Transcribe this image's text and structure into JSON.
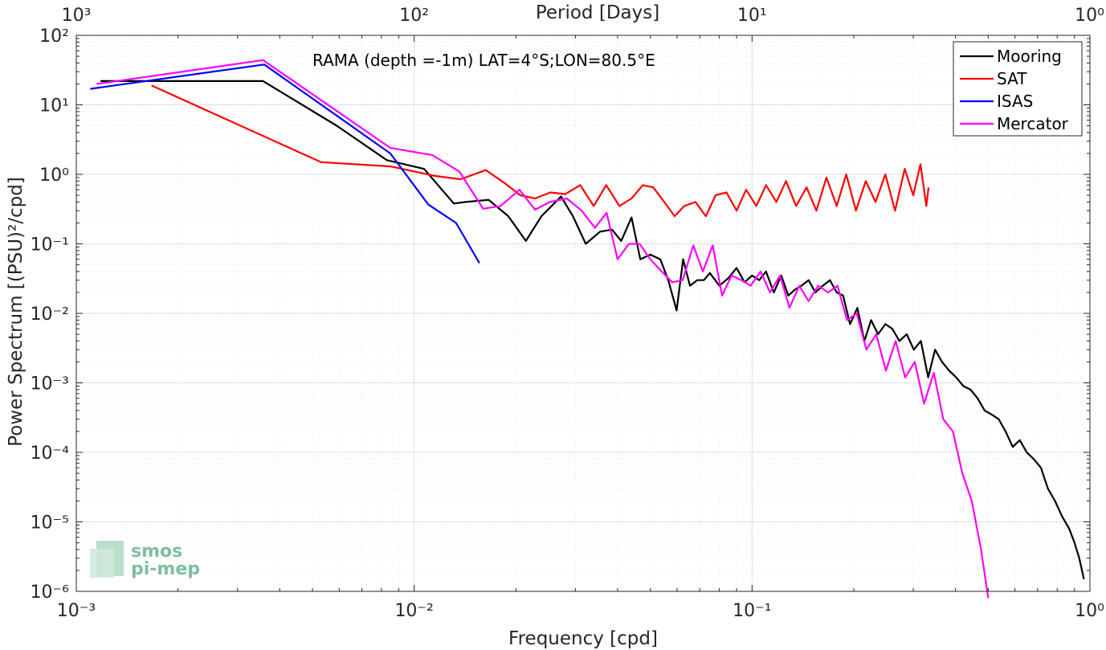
{
  "chart_data": {
    "type": "line",
    "title": "RAMA (depth =-1m) LAT=4°S;LON=80.5°E",
    "xlabel": "Frequency [cpd]",
    "ylabel": "Power Spectrum [(PSU)²/cpd]",
    "top_xlabel": "Period [Days]",
    "xscale": "log",
    "yscale": "log",
    "xlim": [
      0.001,
      1
    ],
    "ylim": [
      1e-06,
      100
    ],
    "grid": true,
    "legend_position": "top-right",
    "x_tick_labels": [
      "10⁻³",
      "10⁻²",
      "10⁻¹",
      "10⁰"
    ],
    "top_tick_labels": [
      "10³",
      "10²",
      "10¹",
      "10⁰"
    ],
    "y_tick_labels": [
      "10⁻⁶",
      "10⁻⁵",
      "10⁻⁴",
      "10⁻³",
      "10⁻²",
      "10⁻¹",
      "10⁰",
      "10¹",
      "10²"
    ],
    "logo": {
      "line1": "smos",
      "line2": "pi-mep"
    },
    "series": [
      {
        "name": "Mooring",
        "color": "#000000",
        "x": [
          0.00118,
          0.00357,
          0.0059,
          0.0083,
          0.0107,
          0.0131,
          0.0142,
          0.0166,
          0.019,
          0.0214,
          0.0238,
          0.0272,
          0.0295,
          0.0322,
          0.0355,
          0.0385,
          0.041,
          0.044,
          0.0467,
          0.05,
          0.0535,
          0.0565,
          0.0598,
          0.0625,
          0.0655,
          0.0688,
          0.072,
          0.075,
          0.08,
          0.085,
          0.09,
          0.095,
          0.1,
          0.105,
          0.11,
          0.116,
          0.122,
          0.128,
          0.134,
          0.14,
          0.147,
          0.154,
          0.162,
          0.17,
          0.178,
          0.186,
          0.195,
          0.205,
          0.215,
          0.225,
          0.236,
          0.248,
          0.26,
          0.273,
          0.287,
          0.301,
          0.316,
          0.332,
          0.348,
          0.365,
          0.383,
          0.402,
          0.422,
          0.443,
          0.465,
          0.488,
          0.512,
          0.537,
          0.563,
          0.591,
          0.62,
          0.65,
          0.682,
          0.716,
          0.751,
          0.788,
          0.827,
          0.868,
          0.9,
          0.93,
          0.96
        ],
        "y": [
          22,
          22,
          5,
          1.6,
          1.2,
          0.38,
          0.4,
          0.43,
          0.25,
          0.11,
          0.25,
          0.48,
          0.25,
          0.1,
          0.15,
          0.16,
          0.11,
          0.24,
          0.06,
          0.07,
          0.06,
          0.03,
          0.011,
          0.06,
          0.025,
          0.03,
          0.03,
          0.038,
          0.025,
          0.032,
          0.045,
          0.028,
          0.035,
          0.03,
          0.04,
          0.02,
          0.035,
          0.018,
          0.022,
          0.025,
          0.03,
          0.02,
          0.025,
          0.03,
          0.02,
          0.018,
          0.007,
          0.012,
          0.004,
          0.008,
          0.005,
          0.007,
          0.006,
          0.004,
          0.005,
          0.003,
          0.004,
          0.0012,
          0.003,
          0.002,
          0.0015,
          0.0012,
          0.0009,
          0.0008,
          0.0006,
          0.0004,
          0.00035,
          0.0003,
          0.0002,
          0.00012,
          0.00015,
          0.0001,
          8e-05,
          6e-05,
          3e-05,
          2e-05,
          1.2e-05,
          8e-06,
          5e-06,
          3e-06,
          1.5e-06
        ]
      },
      {
        "name": "SAT",
        "color": "#ff0000",
        "x": [
          0.00167,
          0.0053,
          0.0085,
          0.0115,
          0.0137,
          0.0163,
          0.0185,
          0.0206,
          0.0228,
          0.0253,
          0.028,
          0.031,
          0.034,
          0.037,
          0.0405,
          0.044,
          0.0475,
          0.051,
          0.055,
          0.059,
          0.063,
          0.068,
          0.073,
          0.078,
          0.084,
          0.09,
          0.096,
          0.103,
          0.11,
          0.118,
          0.126,
          0.135,
          0.145,
          0.155,
          0.166,
          0.178,
          0.19,
          0.203,
          0.217,
          0.232,
          0.248,
          0.265,
          0.283,
          0.3,
          0.315,
          0.328,
          0.333
        ],
        "y": [
          19,
          1.5,
          1.3,
          0.95,
          0.85,
          1.15,
          0.75,
          0.5,
          0.45,
          0.55,
          0.52,
          0.7,
          0.35,
          0.7,
          0.35,
          0.45,
          0.7,
          0.65,
          0.4,
          0.25,
          0.35,
          0.4,
          0.25,
          0.5,
          0.55,
          0.3,
          0.6,
          0.35,
          0.7,
          0.4,
          0.8,
          0.35,
          0.65,
          0.3,
          0.9,
          0.35,
          1.0,
          0.3,
          0.8,
          0.4,
          1.0,
          0.3,
          1.2,
          0.5,
          1.4,
          0.35,
          0.65
        ]
      },
      {
        "name": "ISAS",
        "color": "#0000ff",
        "x": [
          0.0011,
          0.0036,
          0.0085,
          0.011,
          0.0133,
          0.0156
        ],
        "y": [
          17,
          38,
          2.0,
          0.37,
          0.2,
          0.053
        ]
      },
      {
        "name": "Mercator",
        "color": "#ff00ff",
        "x": [
          0.00115,
          0.00357,
          0.0085,
          0.0113,
          0.0136,
          0.016,
          0.018,
          0.0205,
          0.0228,
          0.0252,
          0.0283,
          0.0313,
          0.0343,
          0.0371,
          0.04,
          0.0432,
          0.0465,
          0.05,
          0.054,
          0.058,
          0.0623,
          0.067,
          0.0715,
          0.0765,
          0.0815,
          0.087,
          0.093,
          0.099,
          0.106,
          0.113,
          0.121,
          0.129,
          0.138,
          0.147,
          0.157,
          0.168,
          0.179,
          0.191,
          0.204,
          0.218,
          0.233,
          0.249,
          0.266,
          0.284,
          0.303,
          0.323,
          0.345,
          0.368,
          0.393,
          0.419,
          0.447,
          0.476,
          0.5
        ],
        "y": [
          20,
          44,
          2.4,
          1.9,
          1.1,
          0.32,
          0.35,
          0.6,
          0.31,
          0.4,
          0.45,
          0.3,
          0.17,
          0.28,
          0.06,
          0.1,
          0.1,
          0.06,
          0.04,
          0.028,
          0.03,
          0.095,
          0.04,
          0.095,
          0.018,
          0.035,
          0.03,
          0.025,
          0.04,
          0.02,
          0.035,
          0.012,
          0.025,
          0.015,
          0.025,
          0.02,
          0.025,
          0.008,
          0.01,
          0.003,
          0.005,
          0.0015,
          0.004,
          0.0012,
          0.002,
          0.0005,
          0.0014,
          0.0003,
          0.0002,
          5e-05,
          2e-05,
          4e-06,
          8e-07
        ]
      }
    ]
  }
}
